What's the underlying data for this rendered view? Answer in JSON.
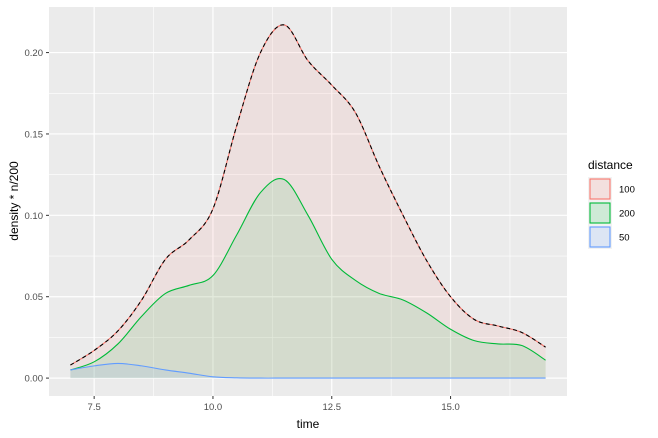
{
  "chart_data": {
    "type": "area",
    "xlabel": "time",
    "ylabel": "density * n/200",
    "xlim": [
      6.55,
      17.45
    ],
    "ylim": [
      -0.011,
      0.228
    ],
    "x_ticks": [
      7.5,
      10.0,
      12.5,
      15.0
    ],
    "x_tick_labels": [
      "7.5",
      "10.0",
      "12.5",
      "15.0"
    ],
    "y_ticks": [
      0.0,
      0.05,
      0.1,
      0.15,
      0.2
    ],
    "y_tick_labels": [
      "0.00",
      "0.05",
      "0.10",
      "0.15",
      "0.20"
    ],
    "grid": true,
    "legend": {
      "title": "distance",
      "position": "right"
    },
    "x": [
      7.0,
      7.5,
      8.0,
      8.5,
      9.0,
      9.5,
      10.0,
      10.5,
      11.0,
      11.5,
      12.0,
      12.5,
      13.0,
      13.5,
      14.0,
      14.5,
      15.0,
      15.5,
      16.0,
      16.5,
      17.0
    ],
    "series": [
      {
        "name": "100",
        "color": "#F8766D",
        "fill": "#F8766D",
        "values": [
          0.008,
          0.017,
          0.029,
          0.048,
          0.073,
          0.085,
          0.104,
          0.155,
          0.2,
          0.217,
          0.195,
          0.18,
          0.163,
          0.13,
          0.1,
          0.072,
          0.05,
          0.036,
          0.032,
          0.028,
          0.019
        ]
      },
      {
        "name": "200",
        "color": "#00BA38",
        "fill": "#00BA38",
        "values": [
          0.005,
          0.01,
          0.021,
          0.038,
          0.052,
          0.057,
          0.063,
          0.088,
          0.114,
          0.122,
          0.1,
          0.073,
          0.06,
          0.052,
          0.048,
          0.04,
          0.03,
          0.023,
          0.021,
          0.02,
          0.011
        ]
      },
      {
        "name": "50",
        "color": "#619CFF",
        "fill": "#619CFF",
        "values": [
          0.005,
          0.0075,
          0.009,
          0.0075,
          0.005,
          0.003,
          0.0008,
          0.0002,
          0.0,
          0.0,
          0.0,
          0.0,
          0.0,
          0.0,
          0.0,
          0.0,
          0.0,
          0.0,
          0.0,
          0.0,
          0.0
        ]
      }
    ],
    "overlay": {
      "series": "100",
      "style": "dashed",
      "color": "#000000"
    }
  }
}
